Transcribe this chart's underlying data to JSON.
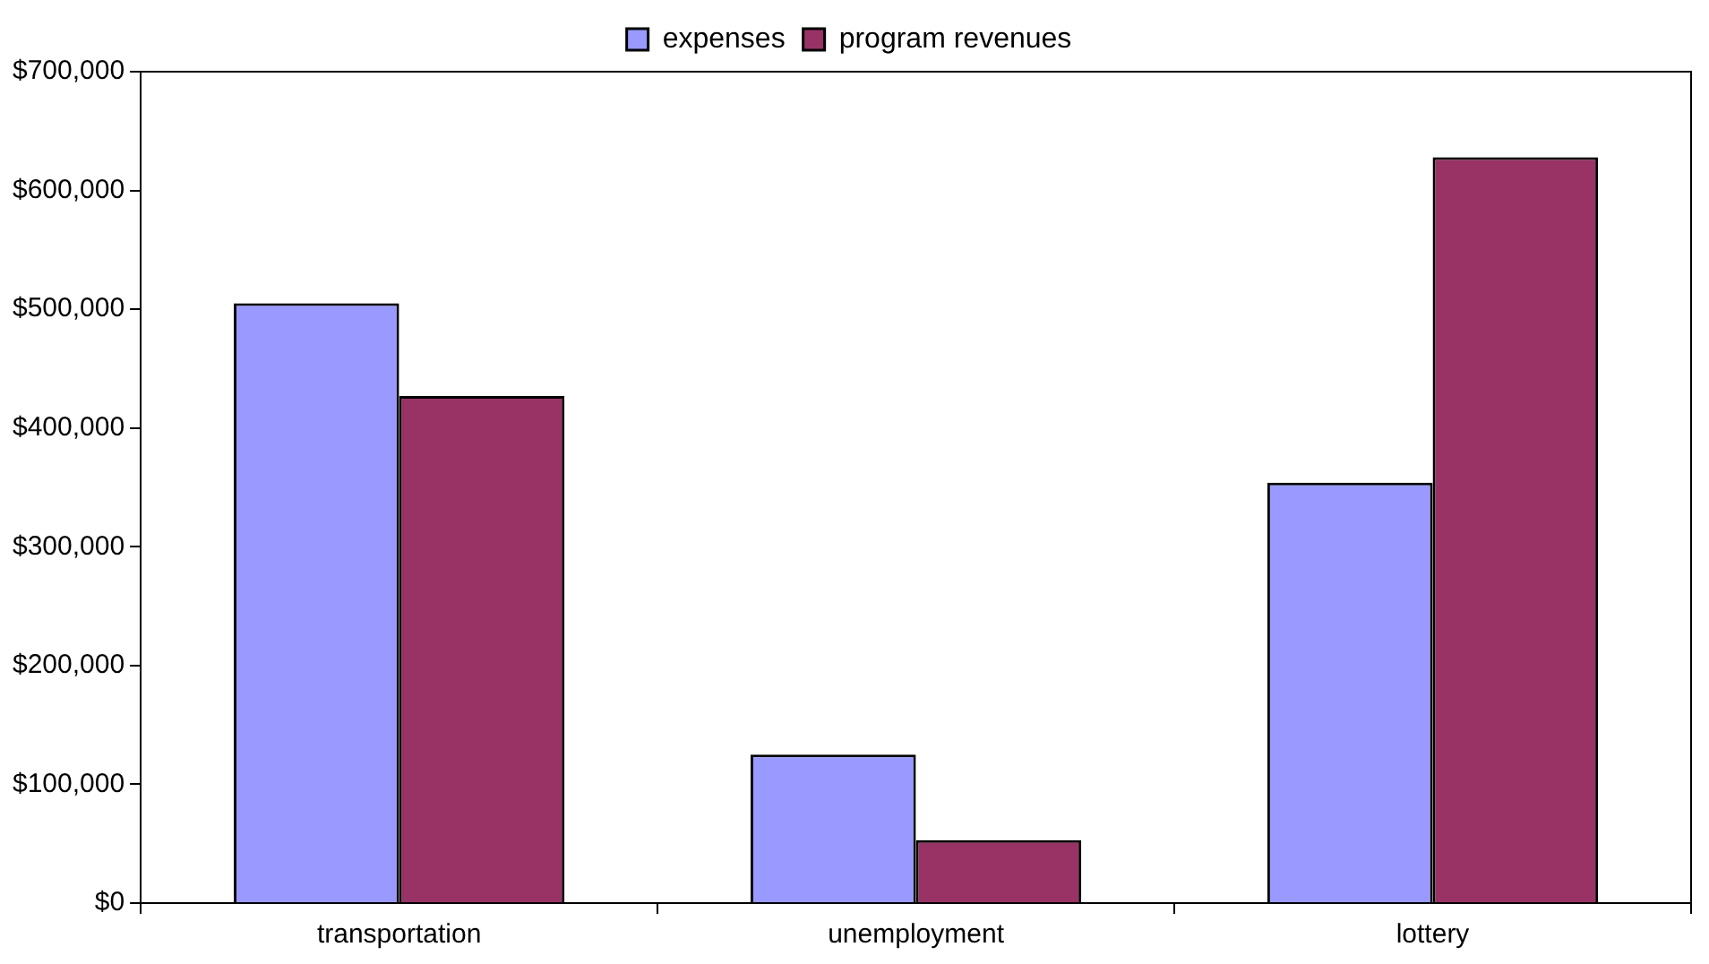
{
  "chart_data": {
    "type": "bar",
    "categories": [
      "transportation",
      "unemployment",
      "lottery"
    ],
    "series": [
      {
        "name": "expenses",
        "color": "#9999ff",
        "values": [
          505000,
          125000,
          354000
        ]
      },
      {
        "name": "program revenues",
        "color": "#993366",
        "values": [
          427000,
          53000,
          628000
        ]
      }
    ],
    "ylim": [
      0,
      700000
    ],
    "yticks": [
      {
        "value": 0,
        "label": "$0"
      },
      {
        "value": 100000,
        "label": "$100,000"
      },
      {
        "value": 200000,
        "label": "$200,000"
      },
      {
        "value": 300000,
        "label": "$300,000"
      },
      {
        "value": 400000,
        "label": "$400,000"
      },
      {
        "value": 500000,
        "label": "$500,000"
      },
      {
        "value": 600000,
        "label": "$600,000"
      },
      {
        "value": 700000,
        "label": "$700,000"
      }
    ],
    "grid": false,
    "legend": "top"
  }
}
